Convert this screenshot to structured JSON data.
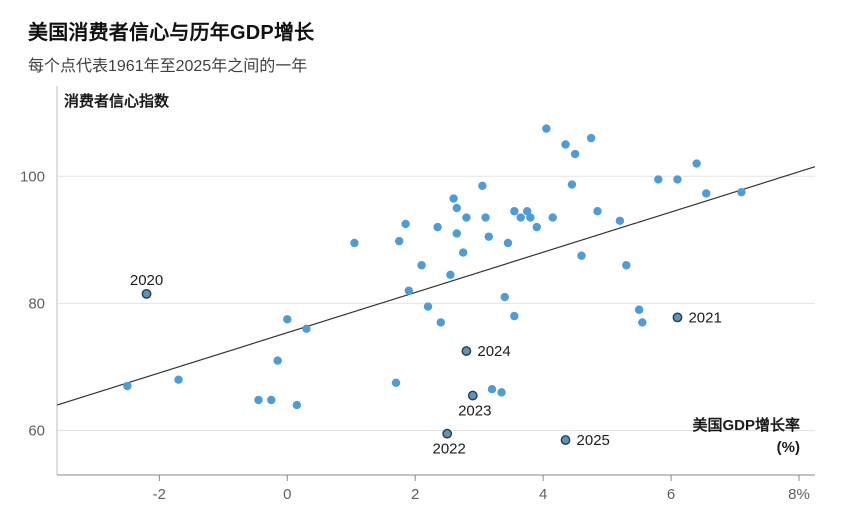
{
  "chart_data": {
    "type": "scatter",
    "title": "美国消费者信心与历年GDP增长",
    "subtitle": "每个点代表1961年至2025年之间的一年",
    "ylabel": "消费者信心指数",
    "xlabel_lines": [
      "美国GDP增长率",
      "(%)"
    ],
    "xlim": [
      -3.6,
      8.25
    ],
    "ylim": [
      53,
      112
    ],
    "grid": "horizontal",
    "legend": "none",
    "x_ticks": [
      {
        "value": -2,
        "label": "-2"
      },
      {
        "value": 0,
        "label": "0"
      },
      {
        "value": 2,
        "label": "2"
      },
      {
        "value": 4,
        "label": "4"
      },
      {
        "value": 6,
        "label": "6"
      },
      {
        "value": 8,
        "label": "8%"
      }
    ],
    "y_ticks": [
      {
        "value": 60,
        "label": "60"
      },
      {
        "value": 80,
        "label": "80"
      },
      {
        "value": 100,
        "label": "100"
      }
    ],
    "trend_line": {
      "x1": -3.6,
      "y1": 64.0,
      "x2": 8.25,
      "y2": 101.5
    },
    "colors": {
      "point": "#4f9bd5",
      "labeled_point_fill": "#6292b4",
      "labeled_point_stroke": "#1f3d52",
      "trend": "#333333",
      "grid": "#e3e3e3",
      "axis": "#8a8a8a",
      "left_axis": "#bdbdbd",
      "tick_label": "#5f5f5f",
      "annotation": "#1c1c1c",
      "axis_label": "#1a1a1a"
    },
    "points": [
      [
        -2.5,
        67
      ],
      [
        -1.7,
        68
      ],
      [
        -0.45,
        64.8
      ],
      [
        -0.25,
        64.8
      ],
      [
        -0.15,
        71
      ],
      [
        0.0,
        77.5
      ],
      [
        0.15,
        64
      ],
      [
        0.3,
        76
      ],
      [
        1.05,
        89.5
      ],
      [
        1.7,
        67.5
      ],
      [
        1.75,
        89.8
      ],
      [
        1.85,
        92.5
      ],
      [
        1.9,
        82
      ],
      [
        2.1,
        86
      ],
      [
        2.2,
        79.5
      ],
      [
        2.35,
        92
      ],
      [
        2.4,
        77
      ],
      [
        2.55,
        84.5
      ],
      [
        2.6,
        96.5
      ],
      [
        2.65,
        95
      ],
      [
        2.65,
        91
      ],
      [
        2.75,
        88
      ],
      [
        2.8,
        93.5
      ],
      [
        3.05,
        98.5
      ],
      [
        3.1,
        93.5
      ],
      [
        3.15,
        90.5
      ],
      [
        3.2,
        66.5
      ],
      [
        3.35,
        66
      ],
      [
        3.4,
        81
      ],
      [
        3.45,
        89.5
      ],
      [
        3.55,
        94.5
      ],
      [
        3.55,
        78
      ],
      [
        3.65,
        93.5
      ],
      [
        3.75,
        94.5
      ],
      [
        3.8,
        93.5
      ],
      [
        3.9,
        92
      ],
      [
        4.05,
        107.5
      ],
      [
        4.15,
        93.5
      ],
      [
        4.35,
        105
      ],
      [
        4.45,
        98.7
      ],
      [
        4.5,
        103.5
      ],
      [
        4.6,
        87.5
      ],
      [
        4.75,
        106
      ],
      [
        4.85,
        94.5
      ],
      [
        5.2,
        93
      ],
      [
        5.3,
        86
      ],
      [
        5.5,
        79
      ],
      [
        5.55,
        77
      ],
      [
        5.8,
        99.5
      ],
      [
        6.1,
        99.5
      ],
      [
        6.4,
        102
      ],
      [
        6.55,
        97.3
      ],
      [
        7.1,
        97.5
      ]
    ],
    "labeled_points": [
      {
        "x": -2.2,
        "y": 81.5,
        "label": "2020",
        "label_position": "top"
      },
      {
        "x": 6.1,
        "y": 77.8,
        "label": "2021",
        "label_position": "right"
      },
      {
        "x": 2.5,
        "y": 59.5,
        "label": "2022",
        "label_position": "bottom"
      },
      {
        "x": 2.9,
        "y": 65.5,
        "label": "2023",
        "label_position": "bottom"
      },
      {
        "x": 2.8,
        "y": 72.5,
        "label": "2024",
        "label_position": "right"
      },
      {
        "x": 4.35,
        "y": 58.5,
        "label": "2025",
        "label_position": "right"
      }
    ]
  }
}
